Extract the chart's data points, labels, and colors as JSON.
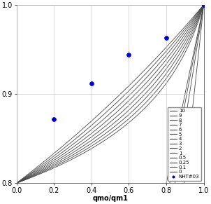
{
  "title": "",
  "xlabel": "qmo/qm1",
  "ylabel": "",
  "xlim": [
    0.0,
    1.0
  ],
  "ylim": [
    0.8,
    1.0
  ],
  "xticks": [
    0.0,
    0.2,
    0.4,
    0.6,
    0.8,
    1.0
  ],
  "yticks": [
    0.8,
    0.9,
    1.0
  ],
  "ytick_labels": [
    "0.8",
    "0.9",
    "1.0"
  ],
  "convergence_point": [
    1.0,
    1.0
  ],
  "curves": [
    {
      "label": "10",
      "b": 10.0
    },
    {
      "label": "9",
      "b": 9.0
    },
    {
      "label": "8",
      "b": 8.0
    },
    {
      "label": "7",
      "b": 7.0
    },
    {
      "label": "6",
      "b": 6.0
    },
    {
      "label": "5",
      "b": 5.0
    },
    {
      "label": "4",
      "b": 4.0
    },
    {
      "label": "3",
      "b": 3.0
    },
    {
      "label": "2",
      "b": 2.0
    },
    {
      "label": "1",
      "b": 1.0
    },
    {
      "label": "0.5",
      "b": 0.5
    },
    {
      "label": "0.25",
      "b": 0.25
    },
    {
      "label": "0.1",
      "b": 0.1
    },
    {
      "label": "0",
      "b": 0.001
    }
  ],
  "data_points": {
    "label": "NHT#03",
    "color": "#0000dd",
    "x": [
      0.2,
      0.4,
      0.6,
      0.8,
      1.0
    ],
    "y": [
      0.872,
      0.912,
      0.944,
      0.963,
      1.0
    ]
  },
  "line_color": "#444444",
  "background_color": "#ffffff",
  "grid_color": "#cccccc",
  "font_size": 7,
  "xlabel_fontsize": 7,
  "xlabel_bold": true
}
